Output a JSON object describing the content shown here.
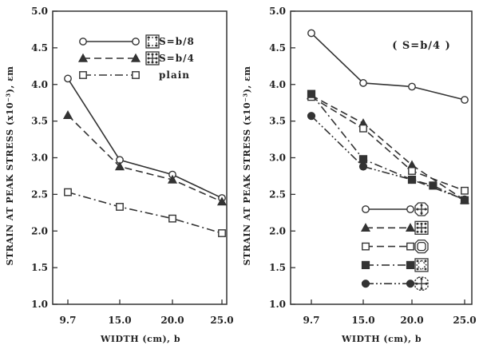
{
  "chart_data": [
    {
      "type": "line",
      "title": "",
      "xlabel": "WIDTH (cm), b",
      "ylabel": "STRAIN AT PEAK STRESS (x10⁻³), εm",
      "categories": [
        "9.7",
        "15.0",
        "20.0",
        "25.0"
      ],
      "x": [
        9.7,
        15.0,
        20.0,
        25.0
      ],
      "yticks": [
        "1.0",
        "1.5",
        "2.0",
        "2.5",
        "3.0",
        "3.5",
        "4.0",
        "4.5",
        "5.0"
      ],
      "ylim": [
        1.0,
        5.0
      ],
      "grid": false,
      "legend_position": "top-right",
      "legend_entries": [
        "S=b/8",
        "S=b/4",
        "plain"
      ],
      "series": [
        {
          "name": "S=b/8",
          "values": [
            4.08,
            2.97,
            2.77,
            2.45
          ],
          "marker": "circle-open",
          "dash": "solid",
          "icon": "square-hoop-icon"
        },
        {
          "name": "S=b/4",
          "values": [
            3.58,
            2.88,
            2.7,
            2.4
          ],
          "marker": "triangle-filled",
          "dash": "dashed",
          "icon": "square-cross-hoop-icon"
        },
        {
          "name": "plain",
          "values": [
            2.53,
            2.33,
            2.17,
            1.97
          ],
          "marker": "square-open",
          "dash": "dashdot",
          "icon": ""
        }
      ]
    },
    {
      "type": "line",
      "title": "",
      "annotation": "( S=b/4 )",
      "xlabel": "WIDTH (cm), b",
      "ylabel": "STRAIN AT PEAK STRESS (x10⁻³), εm",
      "categories": [
        "9.7",
        "15.0",
        "20.0",
        "25.0"
      ],
      "x": [
        9.7,
        15.0,
        20.0,
        25.0
      ],
      "yticks": [
        "1.0",
        "1.5",
        "2.0",
        "2.5",
        "3.0",
        "3.5",
        "4.0",
        "4.5",
        "5.0"
      ],
      "ylim": [
        1.0,
        5.0
      ],
      "grid": false,
      "legend_position": "bottom-right",
      "series": [
        {
          "x": [
            9.7,
            15.0,
            20.0,
            25.0
          ],
          "values": [
            4.7,
            4.02,
            3.97,
            3.79
          ],
          "marker": "circle-open",
          "dash": "solid",
          "icon": "square-hoop-with-ties-icon"
        },
        {
          "x": [
            9.7,
            15.0,
            20.0,
            25.0
          ],
          "values": [
            3.85,
            3.47,
            2.9,
            2.42
          ],
          "marker": "triangle-filled",
          "dash": "dashed",
          "icon": "square-cross-hoop-icon"
        },
        {
          "x": [
            9.7,
            15.0,
            20.0,
            25.0
          ],
          "values": [
            3.83,
            3.4,
            2.82,
            2.55
          ],
          "marker": "square-open",
          "dash": "dashed",
          "icon": "octagon-hoop-icon"
        },
        {
          "x": [
            9.7,
            15.0,
            20.0,
            22.0,
            25.0
          ],
          "values": [
            3.87,
            2.98,
            2.7,
            2.62,
            2.42
          ],
          "marker": "square-filled",
          "dash": "dashdot",
          "icon": "square-hoop-with-diamond-icon"
        },
        {
          "x": [
            9.7,
            15.0,
            20.0,
            25.0
          ],
          "values": [
            3.57,
            2.88,
            2.7,
            2.43
          ],
          "marker": "circle-filled",
          "dash": "dashdotdot",
          "icon": "octagon-with-cross-ties-icon"
        }
      ]
    }
  ]
}
